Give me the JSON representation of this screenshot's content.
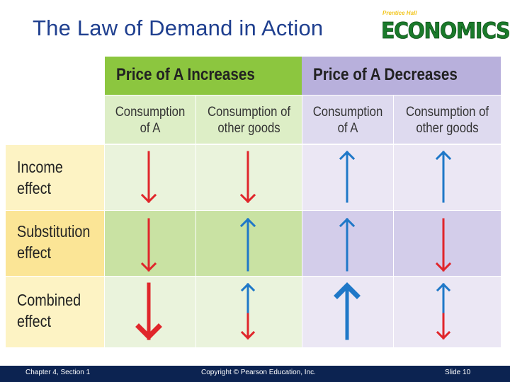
{
  "slide": {
    "title": "The Law of Demand in Action",
    "logo_small": "Prentice Hall",
    "logo_main": "ECONOMICS"
  },
  "table": {
    "group_headers": [
      "Price of A Increases",
      "Price of A Decreases"
    ],
    "sub_headers": [
      "Consumption\nof A",
      "Consumption of\nother goods",
      "Consumption\nof A",
      "Consumption of\nother goods"
    ],
    "rows": [
      {
        "label": "Income\n  effect",
        "arrows": [
          "down",
          "down",
          "up",
          "up"
        ]
      },
      {
        "label": "Substitution\n  effect",
        "arrows": [
          "down",
          "up",
          "up",
          "down"
        ]
      },
      {
        "label": "Combined\n  effect",
        "arrows": [
          "down-large",
          "up-down",
          "up-large",
          "up-down"
        ]
      }
    ]
  },
  "colors": {
    "green_header": "#8cc63f",
    "purple_header": "#b8b0dc",
    "arrow_red": "#e0262b",
    "arrow_blue": "#1f78c8",
    "footer_bg": "#0c2351",
    "title_color": "#1f3f8f"
  },
  "footer": {
    "left": "Chapter 4, Section 1",
    "center": "Copyright © Pearson Education, Inc.",
    "right": "Slide 10"
  }
}
